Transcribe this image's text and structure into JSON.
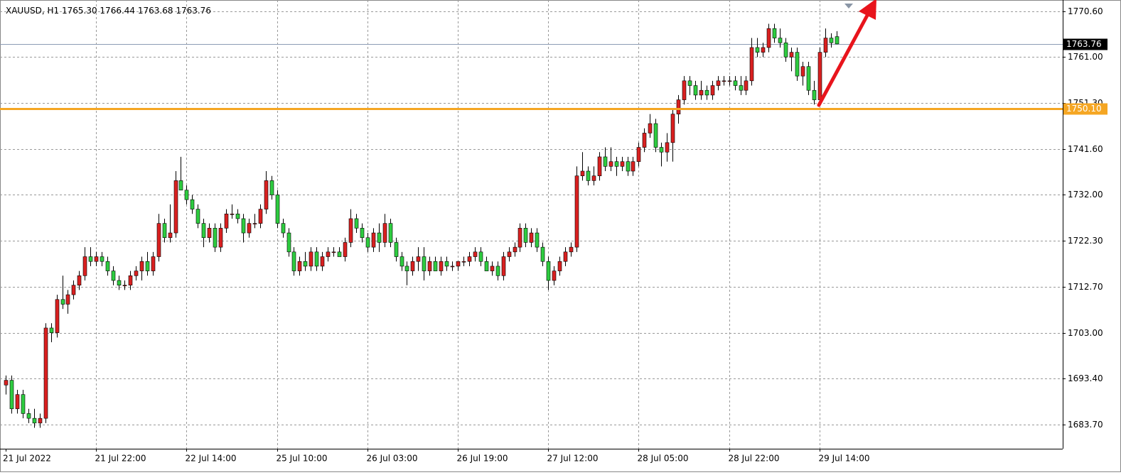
{
  "chart_data": {
    "type": "candlestick",
    "title": "XAUUSD, H1",
    "last_bar_labels": [
      "1765.30",
      "1766.44",
      "1763.68",
      "1763.76"
    ],
    "categories": [
      "21 Jul 2022",
      null,
      null,
      null,
      null,
      null,
      null,
      null,
      null,
      null,
      null,
      null,
      null,
      null,
      null,
      null,
      "21 Jul 22:00",
      null,
      null,
      null,
      null,
      null,
      null,
      null,
      null,
      null,
      null,
      null,
      null,
      null,
      null,
      null,
      "22 Jul 14:00",
      null,
      null,
      null,
      null,
      null,
      null,
      null,
      null,
      null,
      null,
      null,
      null,
      null,
      null,
      null,
      "25 Jul 10:00",
      null,
      null,
      null,
      null,
      null,
      null,
      null,
      null,
      null,
      null,
      null,
      null,
      null,
      null,
      null,
      "26 Jul 03:00",
      null,
      null,
      null,
      null,
      null,
      null,
      null,
      null,
      null,
      null,
      null,
      null,
      null,
      null,
      null,
      "26 Jul 19:00",
      null,
      null,
      null,
      null,
      null,
      null,
      null,
      null,
      null,
      null,
      null,
      null,
      null,
      null,
      null,
      "27 Jul 12:00",
      null,
      null,
      null,
      null,
      null,
      null,
      null,
      null,
      null,
      null,
      null,
      null,
      null,
      null,
      null,
      "28 Jul 05:00",
      null,
      null,
      null,
      null,
      null,
      null,
      null,
      null,
      null,
      null,
      null,
      null,
      null,
      null,
      null,
      "28 Jul 22:00",
      null,
      null,
      null,
      null,
      null,
      null,
      null,
      null,
      null,
      null,
      null,
      null,
      null,
      null,
      null,
      "29 Jul 14:00",
      null,
      null,
      null
    ],
    "open": [
      1692,
      1693,
      1687,
      1690,
      1686,
      1685,
      1684,
      1685,
      1704,
      1703,
      1710,
      1709,
      1711,
      1713,
      1715,
      1719,
      1718,
      1719,
      1718,
      1716,
      1714,
      1713,
      1713,
      1715,
      1716,
      1718,
      1716,
      1719,
      1726,
      1723,
      1724,
      1735,
      1733,
      1731,
      1729,
      1726,
      1723,
      1725,
      1721,
      1725,
      1728,
      1728,
      1727,
      1724,
      1726,
      1726,
      1729,
      1735,
      1732,
      1726,
      1724,
      1720,
      1716,
      1718,
      1717,
      1720,
      1717,
      1719,
      1720,
      1720,
      1719,
      1722,
      1727,
      1725,
      1723,
      1721,
      1724,
      1722,
      1726,
      1722,
      1719,
      1717,
      1716,
      1718,
      1719,
      1716,
      1718,
      1716,
      1718,
      1717,
      1717,
      1718,
      1718,
      1719,
      1720,
      1718,
      1716,
      1717,
      1715,
      1719,
      1720,
      1721,
      1725,
      1722,
      1724,
      1721,
      1718,
      1714,
      1716,
      1718,
      1720,
      1721,
      1736,
      1737,
      1735,
      1736,
      1740,
      1738,
      1739,
      1738,
      1739,
      1737,
      1739,
      1742,
      1745,
      1747,
      1742,
      1741,
      1743,
      1749,
      1752,
      1756,
      1755,
      1753,
      1754,
      1753,
      1755,
      1756,
      1756,
      1756,
      1755,
      1754,
      1756,
      1763,
      1762,
      1763,
      1767,
      1765,
      1764,
      1761,
      1762,
      1757,
      1759,
      1754,
      1752,
      1762,
      1765,
      1765.3
    ],
    "high": [
      1694,
      1694,
      1691,
      1691,
      1687,
      1687,
      1686,
      1705,
      1705,
      1711,
      1715,
      1712,
      1714,
      1716,
      1721,
      1721,
      1720,
      1720,
      1719,
      1717,
      1715,
      1714,
      1716,
      1717,
      1719,
      1720,
      1720,
      1728,
      1727,
      1730,
      1737,
      1740,
      1734,
      1732,
      1730,
      1727,
      1726,
      1726,
      1726,
      1729,
      1730,
      1729,
      1728,
      1727,
      1728,
      1730,
      1737,
      1736,
      1733,
      1727,
      1725,
      1721,
      1719,
      1720,
      1721,
      1721,
      1720,
      1721,
      1721,
      1721,
      1723,
      1729,
      1728,
      1726,
      1724,
      1725,
      1726,
      1728,
      1727,
      1723,
      1720,
      1718,
      1719,
      1721,
      1721,
      1719,
      1719,
      1719,
      1719,
      1718,
      1718,
      1719,
      1720,
      1721,
      1721,
      1719,
      1718,
      1718,
      1720,
      1721,
      1722,
      1726,
      1726,
      1725,
      1725,
      1722,
      1719,
      1717,
      1719,
      1721,
      1722,
      1738,
      1741,
      1738,
      1738,
      1741,
      1742,
      1742,
      1740,
      1740,
      1740,
      1740,
      1743,
      1746,
      1749,
      1748,
      1743,
      1745,
      1750,
      1753,
      1757,
      1757,
      1756,
      1756,
      1755,
      1756,
      1757,
      1757,
      1757,
      1757,
      1757,
      1757,
      1765,
      1765,
      1764,
      1768,
      1768,
      1767,
      1765,
      1763,
      1763,
      1760,
      1760,
      1756,
      1763,
      1767,
      1766,
      1766.44
    ],
    "low": [
      1690,
      1686,
      1686,
      1685,
      1684,
      1683,
      1683,
      1684,
      1701,
      1702,
      1708,
      1707,
      1710,
      1712,
      1714,
      1717,
      1717,
      1717,
      1715,
      1713,
      1712,
      1712,
      1712,
      1714,
      1714,
      1715,
      1715,
      1718,
      1722,
      1722,
      1723,
      1733,
      1730,
      1728,
      1725,
      1721,
      1722,
      1720,
      1720,
      1724,
      1727,
      1726,
      1722,
      1723,
      1725,
      1725,
      1728,
      1731,
      1725,
      1723,
      1719,
      1715,
      1715,
      1716,
      1716,
      1716,
      1716,
      1718,
      1719,
      1719,
      1718,
      1721,
      1724,
      1722,
      1720,
      1720,
      1720,
      1721,
      1721,
      1718,
      1716,
      1713,
      1715,
      1716,
      1714,
      1715,
      1716,
      1715,
      1716,
      1716,
      1716,
      1717,
      1717,
      1718,
      1717,
      1716,
      1715,
      1714,
      1714,
      1718,
      1719,
      1720,
      1721,
      1721,
      1720,
      1717,
      1712,
      1713,
      1715,
      1717,
      1719,
      1720,
      1735,
      1734,
      1734,
      1735,
      1737,
      1737,
      1736,
      1737,
      1736,
      1736,
      1738,
      1741,
      1744,
      1741,
      1738,
      1739,
      1739,
      1747,
      1751,
      1753,
      1752,
      1752,
      1752,
      1752,
      1754,
      1755,
      1755,
      1754,
      1753,
      1753,
      1755,
      1761,
      1761,
      1762,
      1764,
      1763,
      1760,
      1758,
      1756,
      1755,
      1753,
      1751,
      1751,
      1761,
      1763,
      1763.68
    ],
    "close": [
      1693,
      1687,
      1690,
      1686,
      1685,
      1684,
      1685,
      1704,
      1703,
      1710,
      1709,
      1711,
      1713,
      1715,
      1719,
      1718,
      1719,
      1718,
      1716,
      1714,
      1713,
      1713,
      1715,
      1716,
      1718,
      1716,
      1719,
      1726,
      1723,
      1724,
      1735,
      1733,
      1731,
      1729,
      1726,
      1723,
      1725,
      1721,
      1725,
      1728,
      1728,
      1727,
      1724,
      1726,
      1726,
      1729,
      1735,
      1732,
      1726,
      1724,
      1720,
      1716,
      1718,
      1717,
      1720,
      1717,
      1719,
      1720,
      1720,
      1719,
      1722,
      1727,
      1725,
      1723,
      1721,
      1724,
      1722,
      1726,
      1722,
      1719,
      1717,
      1716,
      1718,
      1719,
      1716,
      1718,
      1716,
      1718,
      1717,
      1717,
      1718,
      1718,
      1719,
      1720,
      1718,
      1716,
      1717,
      1715,
      1719,
      1720,
      1721,
      1725,
      1722,
      1724,
      1721,
      1718,
      1714,
      1716,
      1718,
      1720,
      1721,
      1736,
      1737,
      1735,
      1736,
      1740,
      1738,
      1739,
      1738,
      1739,
      1737,
      1739,
      1742,
      1745,
      1747,
      1742,
      1741,
      1743,
      1749,
      1752,
      1756,
      1755,
      1753,
      1754,
      1753,
      1755,
      1756,
      1756,
      1756,
      1755,
      1754,
      1756,
      1763,
      1762,
      1763,
      1767,
      1765,
      1764,
      1761,
      1762,
      1757,
      1759,
      1754,
      1752,
      1762,
      1765,
      1764,
      1763.76
    ],
    "up_color": "#d92020",
    "down_color": "#2ecc40",
    "ylim": [
      1678.6,
      1773.0
    ],
    "yticks": [
      {
        "value": 1770.6,
        "label": "1770.60"
      },
      {
        "value": 1761,
        "label": "1761.00"
      },
      {
        "value": 1751.3,
        "label": "1751.30"
      },
      {
        "value": 1741.6,
        "label": "1741.60"
      },
      {
        "value": 1732,
        "label": "1732.00"
      },
      {
        "value": 1722.3,
        "label": "1722.30"
      },
      {
        "value": 1712.7,
        "label": "1712.70"
      },
      {
        "value": 1703,
        "label": "1703.00"
      },
      {
        "value": 1693.4,
        "label": "1693.40"
      },
      {
        "value": 1683.7,
        "label": "1683.70"
      }
    ],
    "grid": true,
    "level": {
      "value": 1750.1,
      "label": "1750.10"
    },
    "level_color": "#f5a623"
  }
}
